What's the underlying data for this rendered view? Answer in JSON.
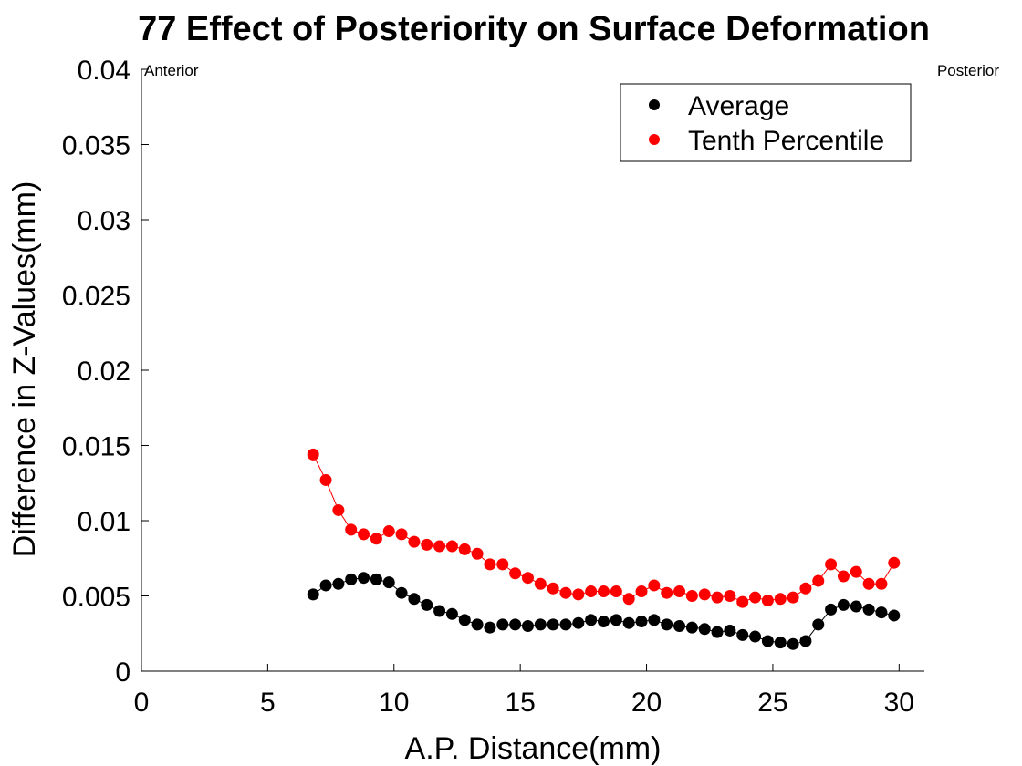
{
  "chart_data": {
    "type": "scatter",
    "title": "77  Effect of Posteriority on Surface Deformation",
    "xlabel": "A.P. Distance(mm)",
    "ylabel": "Difference in Z-Values(mm)",
    "xlim": [
      0,
      31
    ],
    "ylim": [
      0,
      0.04
    ],
    "xticks": [
      0,
      5,
      10,
      15,
      20,
      25,
      30
    ],
    "xtick_labels": [
      "0",
      "5",
      "10",
      "15",
      "20",
      "25",
      "30"
    ],
    "yticks": [
      0,
      0.005,
      0.01,
      0.015,
      0.02,
      0.025,
      0.03,
      0.035,
      0.04
    ],
    "ytick_labels": [
      "0",
      "0.005",
      "0.01",
      "0.015",
      "0.02",
      "0.025",
      "0.03",
      "0.035",
      "0.04"
    ],
    "grid": false,
    "legend_position": "top-right",
    "annotations": {
      "left": "Anterior",
      "right": "Posterior"
    },
    "x": [
      6.8,
      7.3,
      7.8,
      8.3,
      8.8,
      9.3,
      9.8,
      10.3,
      10.8,
      11.3,
      11.8,
      12.3,
      12.8,
      13.3,
      13.8,
      14.3,
      14.8,
      15.3,
      15.8,
      16.3,
      16.8,
      17.3,
      17.8,
      18.3,
      18.8,
      19.3,
      19.8,
      20.3,
      20.8,
      21.3,
      21.8,
      22.3,
      22.8,
      23.3,
      23.8,
      24.3,
      24.8,
      25.3,
      25.8,
      26.3,
      26.8,
      27.3,
      27.8,
      28.3,
      28.8,
      29.3,
      29.8
    ],
    "series": [
      {
        "name": "Average",
        "color": "#000000",
        "values": [
          0.0051,
          0.0057,
          0.0058,
          0.0061,
          0.0062,
          0.0061,
          0.0059,
          0.0052,
          0.0048,
          0.0044,
          0.004,
          0.0038,
          0.0034,
          0.0031,
          0.0029,
          0.0031,
          0.0031,
          0.003,
          0.0031,
          0.0031,
          0.0031,
          0.0032,
          0.0034,
          0.0033,
          0.0034,
          0.0032,
          0.0033,
          0.0034,
          0.0031,
          0.003,
          0.0029,
          0.0028,
          0.0026,
          0.0027,
          0.0024,
          0.0023,
          0.002,
          0.0019,
          0.0018,
          0.002,
          0.0031,
          0.0041,
          0.0044,
          0.0043,
          0.0041,
          0.0039,
          0.0037
        ]
      },
      {
        "name": "Tenth Percentile",
        "color": "#ff0000",
        "values": [
          0.0144,
          0.0127,
          0.0107,
          0.0094,
          0.0091,
          0.0088,
          0.0093,
          0.0091,
          0.0086,
          0.0084,
          0.0083,
          0.0083,
          0.0081,
          0.0078,
          0.0071,
          0.0071,
          0.0065,
          0.0062,
          0.0058,
          0.0055,
          0.0052,
          0.0051,
          0.0053,
          0.0053,
          0.0053,
          0.0048,
          0.0053,
          0.0057,
          0.0052,
          0.0053,
          0.005,
          0.0051,
          0.0049,
          0.005,
          0.0046,
          0.0049,
          0.0047,
          0.0048,
          0.0049,
          0.0055,
          0.006,
          0.0071,
          0.0063,
          0.0066,
          0.0058,
          0.0058,
          0.0072
        ]
      }
    ]
  }
}
